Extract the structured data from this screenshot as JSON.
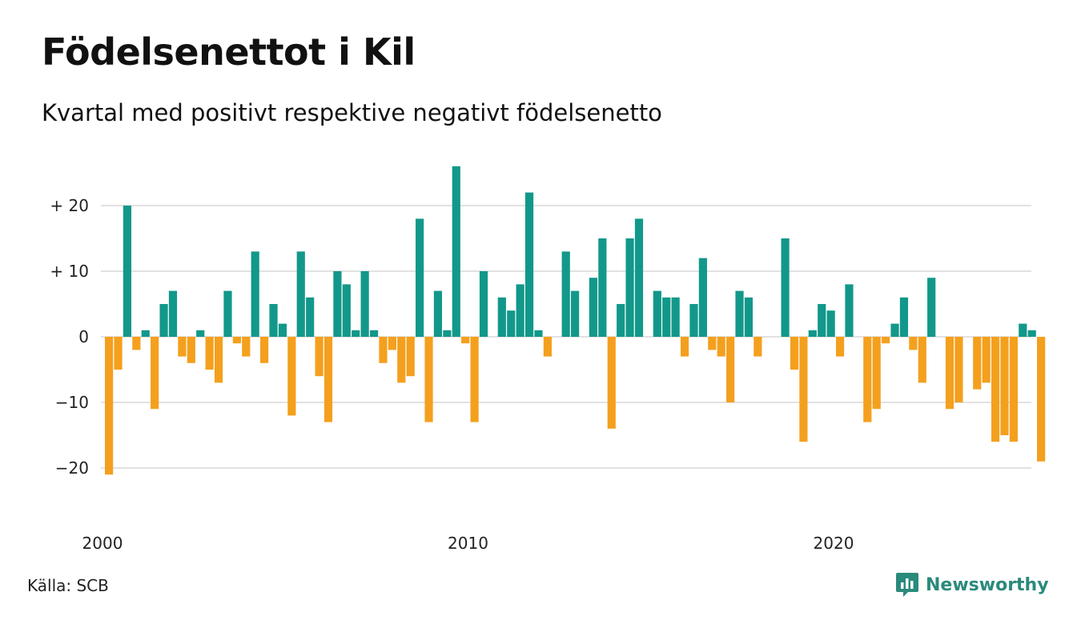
{
  "title": "Födelsenettot i Kil",
  "subtitle": "Kvartal med positivt respektive negativt födelsenetto",
  "source": "Källa: SCB",
  "brand": {
    "name": "Newsworthy",
    "icon": "newsworthy-logo-icon",
    "color": "#2a8a7c"
  },
  "colors": {
    "positive": "#12988a",
    "negative": "#f4a01e",
    "grid": "#e2e2e2"
  },
  "chart_data": {
    "type": "bar",
    "ylim": [
      -23,
      27
    ],
    "yticks": [
      {
        "value": 20,
        "label": "+ 20"
      },
      {
        "value": 10,
        "label": "+ 10"
      },
      {
        "value": 0,
        "label": "0"
      },
      {
        "value": -10,
        "label": "−10"
      },
      {
        "value": -20,
        "label": "−20"
      }
    ],
    "xticks": [
      {
        "year": 2000,
        "label": "2000"
      },
      {
        "year": 2010,
        "label": "2010"
      },
      {
        "year": 2020,
        "label": "2020"
      }
    ],
    "grid": true,
    "start_year": 2000,
    "start_quarter": 1,
    "values": [
      -21,
      -5,
      20,
      -2,
      1,
      -11,
      5,
      7,
      -3,
      -4,
      1,
      -5,
      -7,
      7,
      -1,
      -3,
      13,
      -4,
      5,
      2,
      -12,
      13,
      6,
      -6,
      -13,
      10,
      8,
      1,
      10,
      1,
      -4,
      -2,
      -7,
      -6,
      18,
      -13,
      7,
      1,
      26,
      -1,
      -13,
      10,
      0,
      6,
      4,
      8,
      22,
      1,
      -3,
      0,
      13,
      7,
      0,
      9,
      15,
      -14,
      5,
      15,
      18,
      0,
      7,
      6,
      6,
      -3,
      5,
      12,
      -2,
      -3,
      -10,
      7,
      6,
      -3,
      0,
      0,
      15,
      -5,
      -16,
      1,
      5,
      4,
      -3,
      8,
      0,
      -13,
      -11,
      -1,
      2,
      6,
      -2,
      -7,
      9,
      0,
      -11,
      -10,
      0,
      -8,
      -7,
      -16,
      -15,
      -16,
      2,
      1,
      -19
    ]
  }
}
